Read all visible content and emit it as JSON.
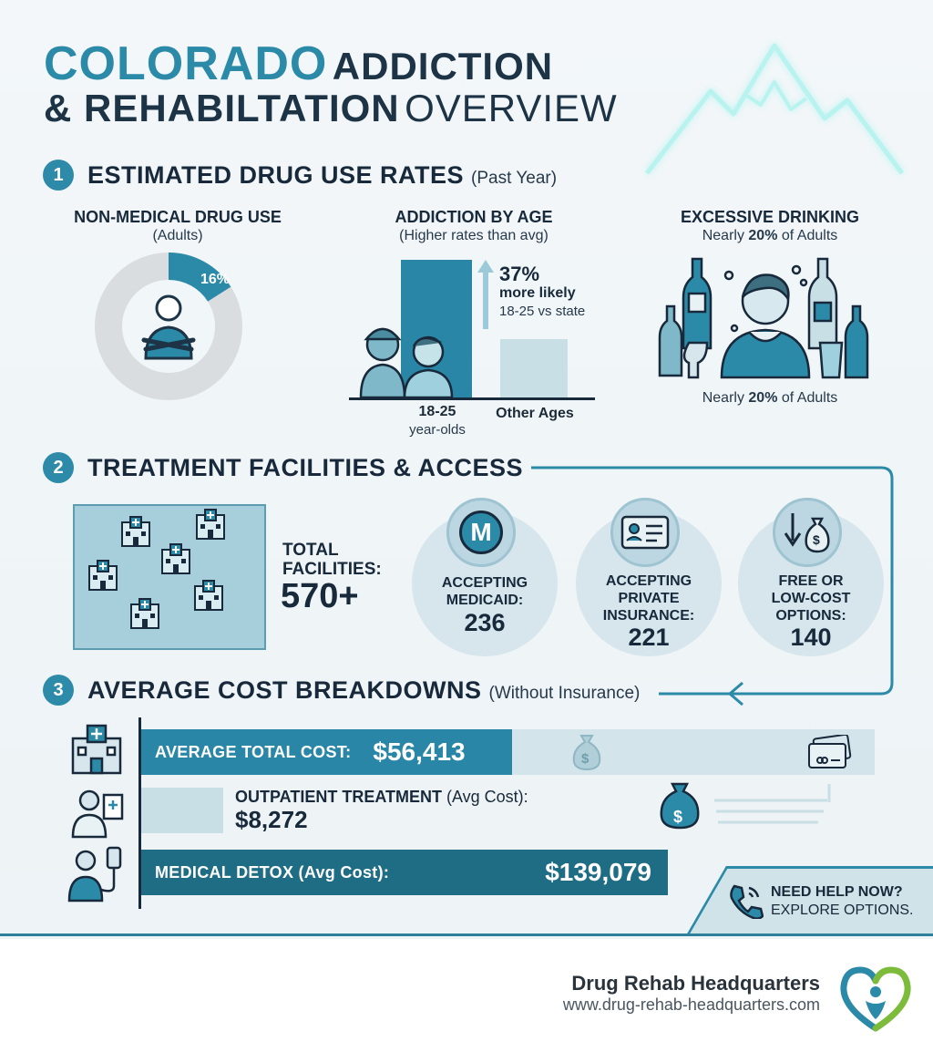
{
  "title": {
    "word1": "COLORADO",
    "word2": "ADDICTION",
    "word3": "& REHABILTATION",
    "word4": "OVERVIEW"
  },
  "section1": {
    "number": "1",
    "title": "ESTIMATED DRUG USE RATES",
    "subtitle": "(Past Year)",
    "nonmedical": {
      "heading": "NON-MEDICAL DRUG USE",
      "sub": "(Adults)",
      "percent_label": "16%",
      "percent_value": 16
    },
    "age": {
      "heading": "ADDICTION BY AGE",
      "sub": "(Higher rates than avg)",
      "stat": "37%",
      "stat_line2": "more likely",
      "stat_line3": "18-25 vs state",
      "bar1_label_line1": "18-25",
      "bar1_label_line2": "year-olds",
      "bar2_label": "Other Ages"
    },
    "drinking": {
      "heading": "EXCESSIVE DRINKING",
      "sub_pre": "Nearly ",
      "sub_bold": "20%",
      "sub_post": " of Adults",
      "bottom_pre": "Nearly ",
      "bottom_bold": "20%",
      "bottom_post": " of Adults"
    }
  },
  "section2": {
    "number": "2",
    "title": "TREATMENT FACILITIES & ACCESS",
    "total_label_line1": "TOTAL",
    "total_label_line2": "FACILITIES:",
    "total_value": "570+",
    "circles": [
      {
        "icon": "medicaid-m-icon",
        "icon_text": "M",
        "label_lines": [
          "ACCEPTING",
          "MEDICAID:"
        ],
        "value": "236"
      },
      {
        "icon": "insurance-card-icon",
        "label_lines": [
          "ACCEPTING",
          "PRIVATE",
          "INSURANCE:"
        ],
        "value": "221"
      },
      {
        "icon": "money-bag-down-icon",
        "label_lines": [
          "FREE OR",
          "LOW-COST",
          "OPTIONS:"
        ],
        "value": "140"
      }
    ]
  },
  "section3": {
    "number": "3",
    "title": "AVERAGE COST BREAKDOWNS",
    "subtitle": "(Without Insurance)",
    "total_cost_label": "AVERAGE TOTAL COST:",
    "total_cost_value": "$56,413",
    "outpatient_label": "OUTPATIENT TREATMENT",
    "outpatient_label_suffix": " (Avg Cost):",
    "outpatient_value": "$8,272",
    "detox_label": "MEDICAL DETOX (Avg Cost):",
    "detox_value": "$139,079",
    "help_line1": "NEED HELP NOW?",
    "help_line2": "EXPLORE OPTIONS."
  },
  "footer": {
    "brand": "Drug Rehab Headquarters",
    "url": "www.drug-rehab-headquarters.com"
  },
  "colors": {
    "accent": "#2b8aa8",
    "dark": "#17293a",
    "bar_dark": "#2a7f99",
    "bar_light": "#d3e5ea"
  }
}
